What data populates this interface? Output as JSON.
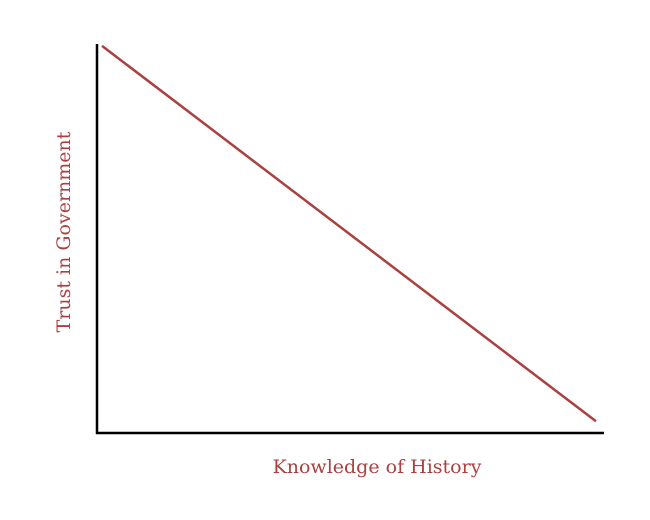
{
  "chart_data": {
    "type": "line",
    "title": "",
    "xlabel": "Knowledge of History",
    "ylabel": "Trust in Government",
    "xlim": [
      0,
      1
    ],
    "ylim": [
      0,
      1
    ],
    "grid": false,
    "series": [
      {
        "x": [
          0.01,
          0.99
        ],
        "y": [
          0.99,
          0.03
        ]
      }
    ],
    "colors": {
      "line": "#a8413f",
      "axis": "#000000",
      "label": "#a8413f"
    }
  }
}
